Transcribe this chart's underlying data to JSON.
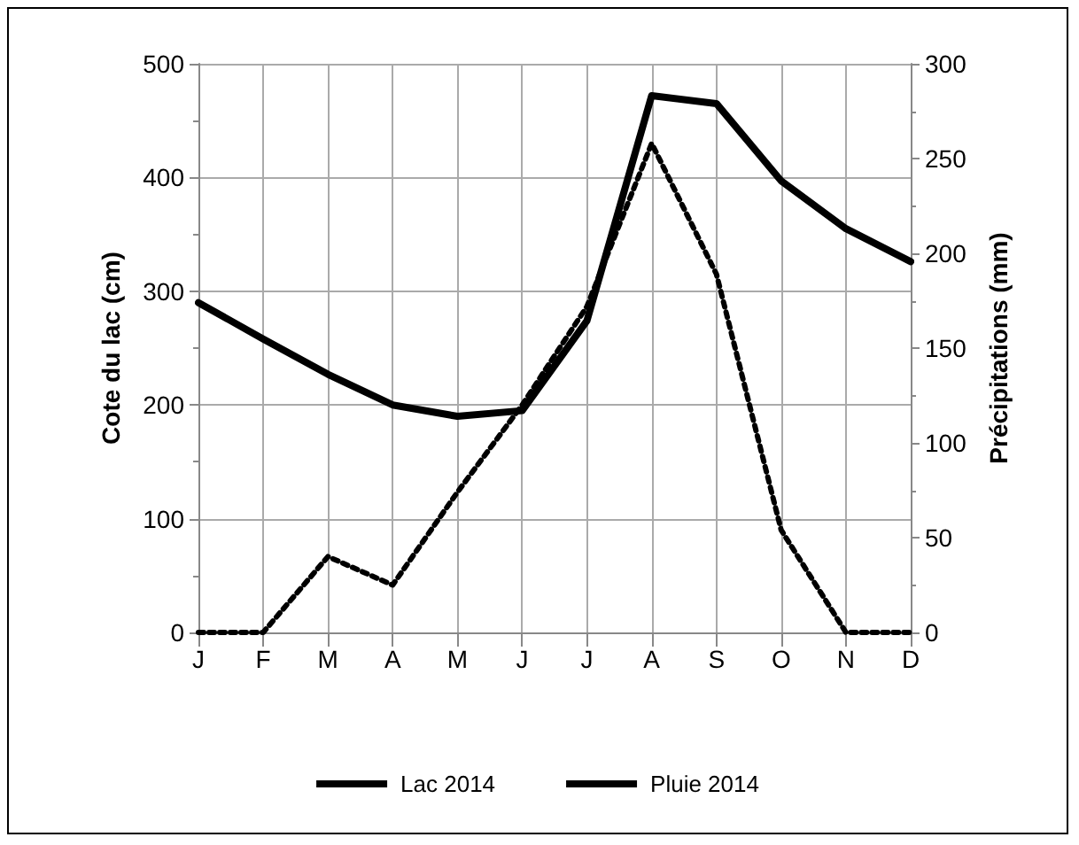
{
  "chart_data": {
    "type": "line",
    "ylabel": "Cote du lac (cm)",
    "y2label": "Précipitations (mm)",
    "categories": [
      "J",
      "F",
      "M",
      "A",
      "M",
      "J",
      "J",
      "A",
      "S",
      "O",
      "N",
      "D"
    ],
    "series": [
      {
        "name": "Lac 2014",
        "color": "#000000",
        "line_style": "solid",
        "values": [
          290,
          258,
          227,
          200,
          190,
          195,
          274,
          472,
          465,
          397,
          355,
          326
        ]
      },
      {
        "name": "Pluie 2014",
        "color": "#000000",
        "line_style": "dotted",
        "axis": "y2",
        "values": [
          0,
          0,
          40,
          25,
          74,
          120,
          172,
          258,
          189,
          54,
          0,
          0
        ]
      }
    ],
    "ylim": [
      0,
      500
    ],
    "yticks": [
      0,
      100,
      200,
      300,
      400,
      500
    ],
    "y2lim": [
      0,
      300
    ],
    "y2ticks": [
      0,
      50,
      100,
      150,
      200,
      250,
      300
    ],
    "grid": true,
    "legend": "bottom",
    "marker": "none"
  }
}
